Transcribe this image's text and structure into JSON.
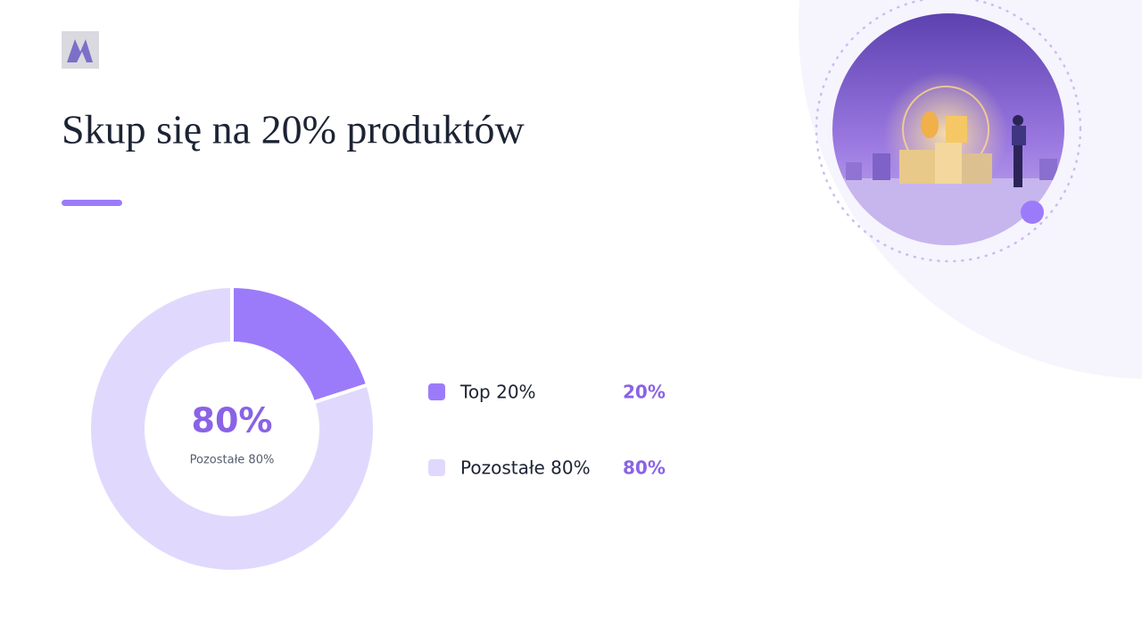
{
  "chart_data": {
    "type": "donut",
    "title": "Skup się na 20% produktów",
    "categories": [
      "Top 20%",
      "Pozostałe 80%"
    ],
    "values": [
      20,
      80
    ],
    "value_labels": [
      "20%",
      "80%"
    ],
    "colors": [
      "#9b7bfa",
      "#e0d9fd"
    ],
    "center_label": "80%",
    "center_sublabel": "Pozostałe 80%"
  }
}
